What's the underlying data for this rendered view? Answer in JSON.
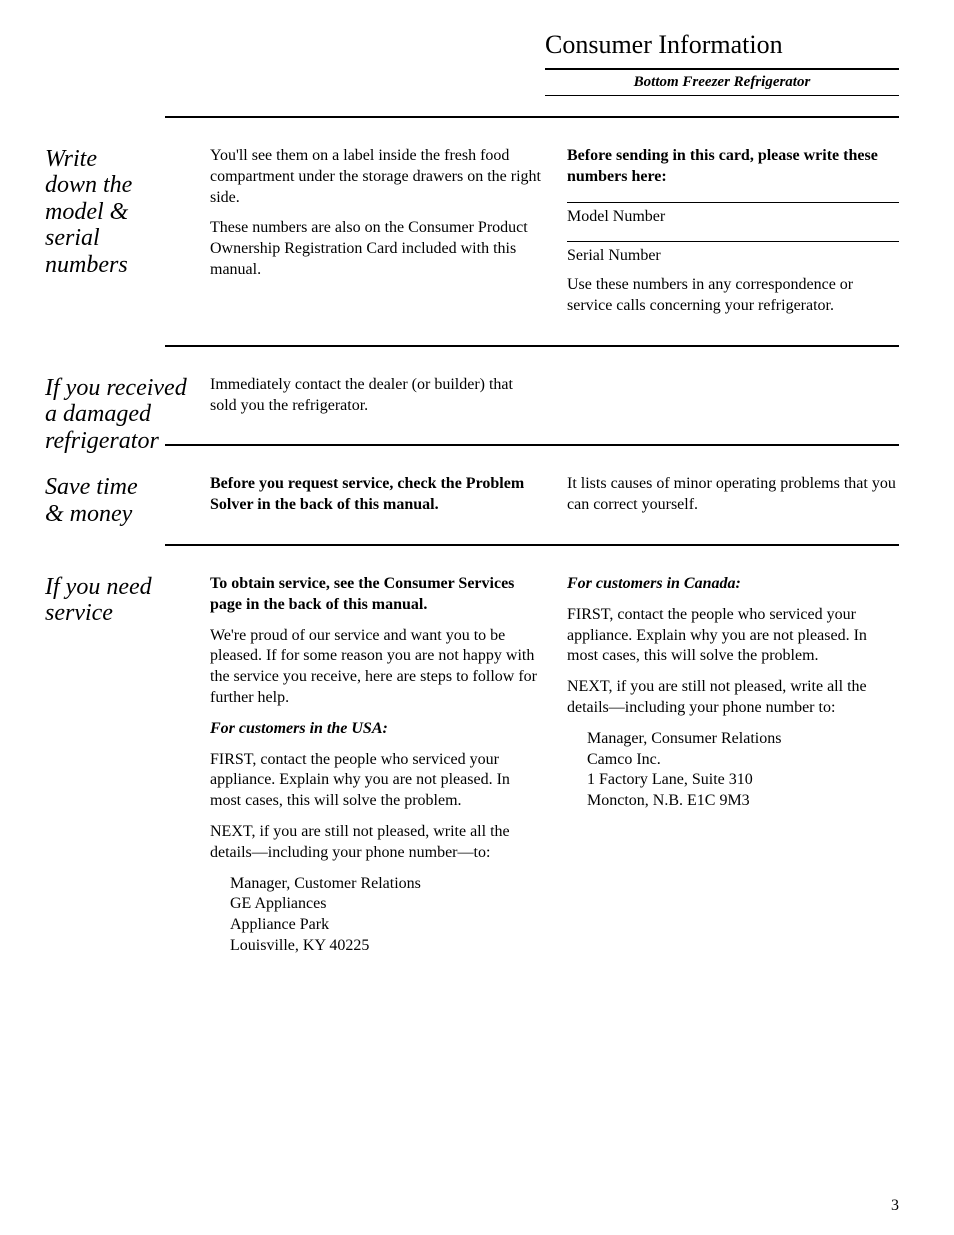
{
  "header": {
    "title": "Consumer Information",
    "subtitle": "Bottom Freezer Refrigerator"
  },
  "sections": {
    "model": {
      "heading": "Write down the model & serial numbers",
      "left": {
        "p1": "You'll see them on a label inside the fresh food compartment under the storage drawers on the right side.",
        "p2": "These numbers are also on the Consumer Product Ownership Registration Card included with this manual."
      },
      "right": {
        "intro": "Before sending in this card, please write these numbers here:",
        "field1": "Model Number",
        "field2": "Serial Number",
        "note": "Use these numbers in any correspondence or service calls concerning your refrigerator."
      }
    },
    "damaged": {
      "heading": "If you received a damaged refrigerator",
      "left": {
        "p1": "Immediately contact the dealer (or builder) that sold you the refrigerator."
      }
    },
    "savetime": {
      "heading": "Save time & money",
      "left": {
        "p1": "Before you request service, check the Problem Solver in the back of this manual."
      },
      "right": {
        "p1": "It lists causes of minor operating problems that you can correct yourself."
      }
    },
    "service": {
      "heading": "If you need service",
      "left": {
        "p1": "To obtain service, see the Consumer Services page in the back of this manual.",
        "p2": "We're proud of our service and want you to be pleased. If for some reason you are not happy with the service you receive, here are steps to follow for further help.",
        "subhead": "For customers in the USA:",
        "p3": "FIRST, contact the people who serviced your appliance. Explain why you are not pleased. In most cases, this will solve the problem.",
        "p4": "NEXT, if you are still not pleased, write all the details—including your phone number—to:",
        "addr1": "Manager, Customer Relations",
        "addr2": "GE Appliances",
        "addr3": "Appliance Park",
        "addr4": "Louisville, KY 40225"
      },
      "right": {
        "subhead": "For customers in Canada:",
        "p1": "FIRST, contact the people who serviced your appliance. Explain why you are not pleased. In most cases, this will solve the problem.",
        "p2": "NEXT, if you are still not pleased, write all the details—including your phone number to:",
        "addr1": "Manager, Consumer Relations",
        "addr2": "Camco Inc.",
        "addr3": "1 Factory Lane, Suite 310",
        "addr4": "Moncton, N.B. E1C 9M3"
      }
    }
  },
  "pageNumber": "3"
}
